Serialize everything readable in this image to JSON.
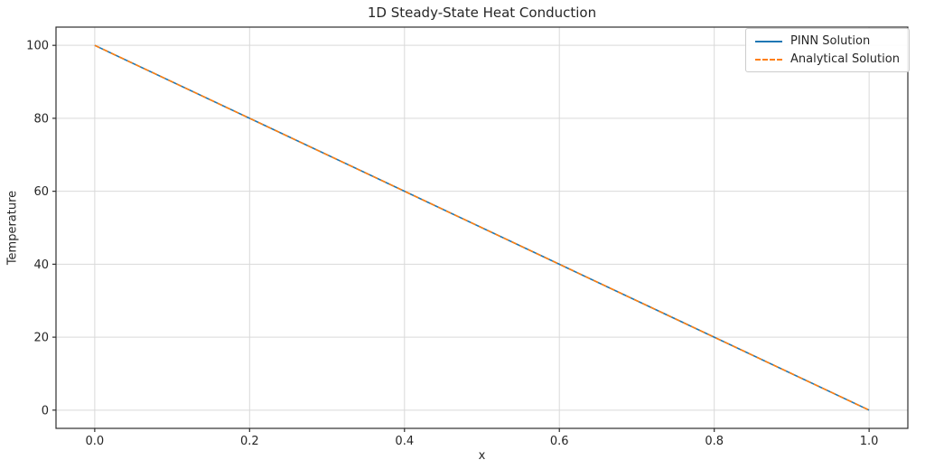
{
  "figure": {
    "title": "1D Steady-State Heat Conduction",
    "xlabel": "x",
    "ylabel": "Temperature",
    "background_color": "#ffffff"
  },
  "legend": {
    "position": "upper right",
    "entries": [
      {
        "label": "PINN Solution",
        "color": "#1f77b4",
        "line_style": "solid"
      },
      {
        "label": "Analytical Solution",
        "color": "#ff7f0e",
        "line_style": "dashed"
      }
    ]
  },
  "chart_data": {
    "type": "line",
    "title": "1D Steady-State Heat Conduction",
    "xlabel": "x",
    "ylabel": "Temperature",
    "xlim": [
      -0.05,
      1.05
    ],
    "ylim": [
      -5,
      105
    ],
    "xticks": [
      0.0,
      0.2,
      0.4,
      0.6,
      0.8,
      1.0
    ],
    "xtick_labels": [
      "0.0",
      "0.2",
      "0.4",
      "0.6",
      "0.8",
      "1.0"
    ],
    "yticks": [
      0,
      20,
      40,
      60,
      80,
      100
    ],
    "ytick_labels": [
      "0",
      "20",
      "40",
      "60",
      "80",
      "100"
    ],
    "grid": true,
    "grid_color": "#d9d9d9",
    "spine_color": "#2e2e2e",
    "legend_position": "upper right",
    "x": [
      0.0,
      0.2,
      0.4,
      0.6,
      0.8,
      1.0
    ],
    "series": [
      {
        "name": "PINN Solution",
        "values": [
          100,
          80,
          60,
          40,
          20,
          0
        ],
        "color": "#1f77b4",
        "line_style": "solid",
        "line_width": 1.6
      },
      {
        "name": "Analytical Solution",
        "values": [
          100,
          80,
          60,
          40,
          20,
          0
        ],
        "color": "#ff7f0e",
        "line_style": "dashed",
        "line_width": 1.6
      }
    ]
  }
}
